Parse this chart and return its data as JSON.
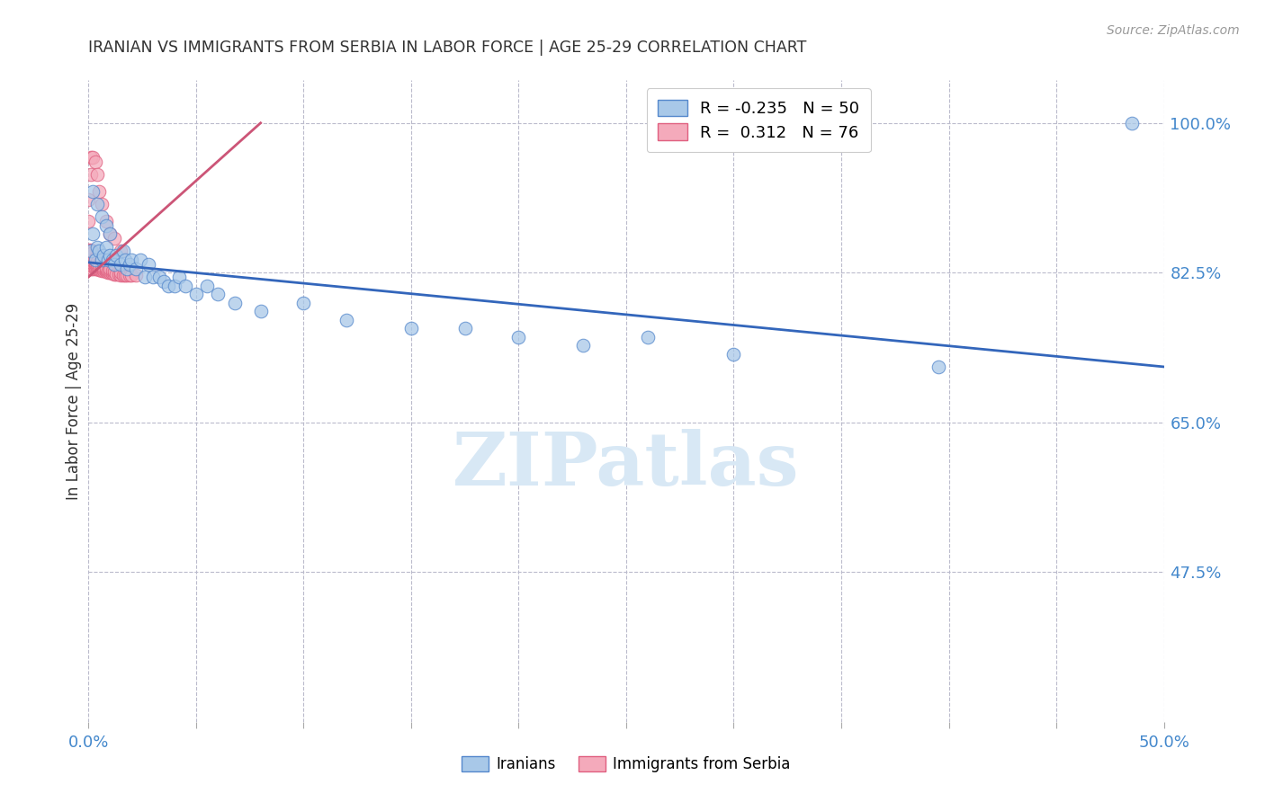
{
  "title": "IRANIAN VS IMMIGRANTS FROM SERBIA IN LABOR FORCE | AGE 25-29 CORRELATION CHART",
  "source": "Source: ZipAtlas.com",
  "ylabel": "In Labor Force | Age 25-29",
  "legend_label1": "Iranians",
  "legend_label2": "Immigrants from Serbia",
  "r1": -0.235,
  "n1": 50,
  "r2": 0.312,
  "n2": 76,
  "xlim": [
    0.0,
    0.5
  ],
  "ylim": [
    0.3,
    1.05
  ],
  "color_blue": "#A8C8E8",
  "color_blue_edge": "#5588CC",
  "color_blue_line": "#3366BB",
  "color_pink": "#F4AABB",
  "color_pink_edge": "#E06080",
  "color_pink_line": "#CC5577",
  "bg_color": "#FFFFFF",
  "title_color": "#333333",
  "axis_color": "#4488CC",
  "grid_color": "#BBBBCC",
  "blue_x": [
    0.001,
    0.002,
    0.003,
    0.004,
    0.005,
    0.006,
    0.007,
    0.008,
    0.009,
    0.01,
    0.011,
    0.012,
    0.013,
    0.015,
    0.016,
    0.017,
    0.018,
    0.019,
    0.02,
    0.022,
    0.024,
    0.026,
    0.028,
    0.03,
    0.033,
    0.035,
    0.037,
    0.04,
    0.042,
    0.045,
    0.05,
    0.055,
    0.06,
    0.068,
    0.08,
    0.1,
    0.12,
    0.15,
    0.175,
    0.2,
    0.23,
    0.26,
    0.3,
    0.002,
    0.004,
    0.006,
    0.008,
    0.01,
    0.395,
    0.485
  ],
  "blue_y": [
    0.85,
    0.87,
    0.84,
    0.855,
    0.85,
    0.84,
    0.845,
    0.855,
    0.84,
    0.845,
    0.84,
    0.835,
    0.845,
    0.835,
    0.85,
    0.84,
    0.83,
    0.835,
    0.84,
    0.83,
    0.84,
    0.82,
    0.835,
    0.82,
    0.82,
    0.815,
    0.81,
    0.81,
    0.82,
    0.81,
    0.8,
    0.81,
    0.8,
    0.79,
    0.78,
    0.79,
    0.77,
    0.76,
    0.76,
    0.75,
    0.74,
    0.75,
    0.73,
    0.92,
    0.905,
    0.89,
    0.88,
    0.87,
    0.715,
    1.0
  ],
  "pink_x": [
    0.0,
    0.0,
    0.0,
    0.0,
    0.0,
    0.001,
    0.001,
    0.001,
    0.001,
    0.001,
    0.001,
    0.001,
    0.001,
    0.001,
    0.002,
    0.002,
    0.002,
    0.002,
    0.002,
    0.002,
    0.002,
    0.003,
    0.003,
    0.003,
    0.003,
    0.003,
    0.003,
    0.004,
    0.004,
    0.004,
    0.004,
    0.005,
    0.005,
    0.005,
    0.005,
    0.006,
    0.006,
    0.006,
    0.007,
    0.007,
    0.007,
    0.008,
    0.008,
    0.008,
    0.009,
    0.009,
    0.01,
    0.01,
    0.01,
    0.011,
    0.011,
    0.012,
    0.012,
    0.013,
    0.014,
    0.015,
    0.015,
    0.016,
    0.017,
    0.018,
    0.019,
    0.02,
    0.022,
    0.0,
    0.0,
    0.001,
    0.001,
    0.002,
    0.003,
    0.004,
    0.005,
    0.006,
    0.008,
    0.01,
    0.012,
    0.015
  ],
  "pink_y": [
    0.84,
    0.845,
    0.848,
    0.85,
    0.852,
    0.83,
    0.835,
    0.838,
    0.84,
    0.843,
    0.846,
    0.848,
    0.85,
    0.852,
    0.83,
    0.833,
    0.836,
    0.839,
    0.842,
    0.845,
    0.848,
    0.83,
    0.832,
    0.835,
    0.837,
    0.84,
    0.842,
    0.83,
    0.832,
    0.835,
    0.838,
    0.828,
    0.83,
    0.832,
    0.835,
    0.827,
    0.83,
    0.832,
    0.827,
    0.829,
    0.832,
    0.826,
    0.828,
    0.831,
    0.825,
    0.827,
    0.825,
    0.827,
    0.83,
    0.824,
    0.827,
    0.823,
    0.826,
    0.823,
    0.823,
    0.822,
    0.825,
    0.822,
    0.822,
    0.822,
    0.822,
    0.822,
    0.822,
    0.91,
    0.885,
    0.94,
    0.96,
    0.96,
    0.955,
    0.94,
    0.92,
    0.905,
    0.885,
    0.87,
    0.865,
    0.85
  ],
  "blue_line_x": [
    0.0,
    0.5
  ],
  "blue_line_y": [
    0.837,
    0.715
  ],
  "pink_line_x": [
    0.0,
    0.08
  ],
  "pink_line_y": [
    0.82,
    1.0
  ]
}
